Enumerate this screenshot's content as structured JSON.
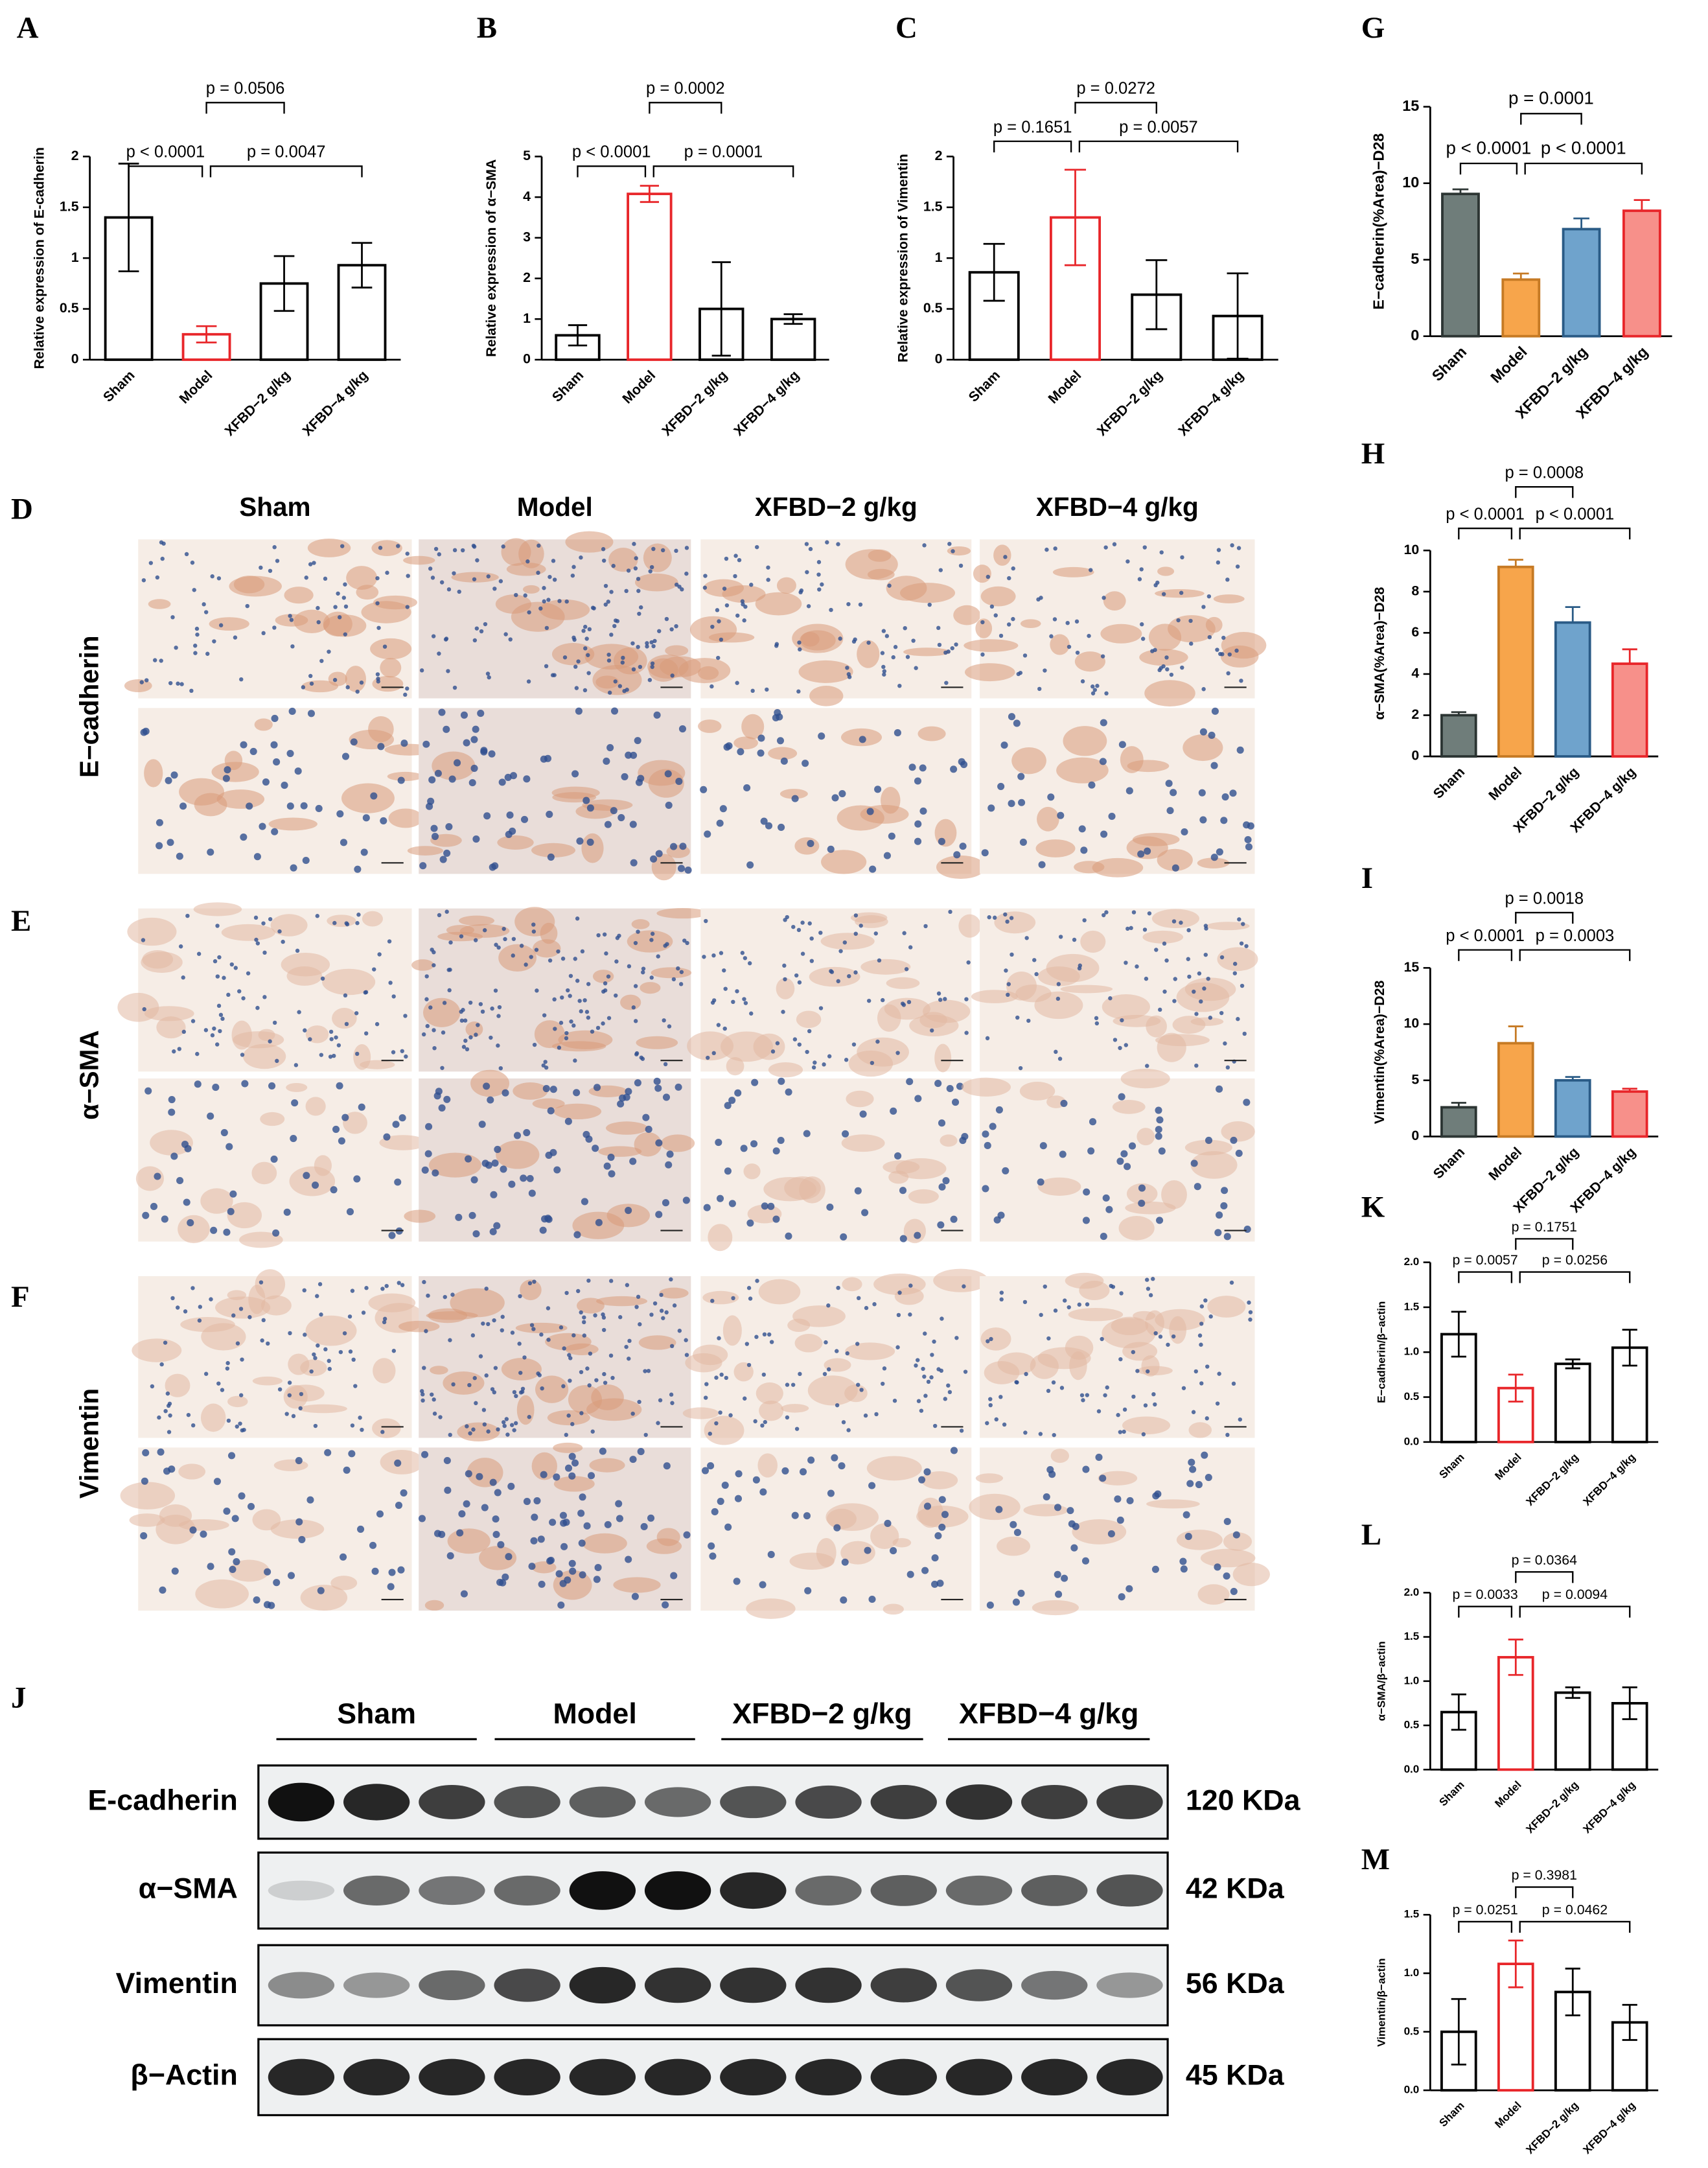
{
  "chart_data": [
    {
      "type": "bar",
      "panel": "A",
      "ylabel": "Relative expression of E-cadherin",
      "categories": [
        "Sham",
        "Model",
        "XFBD−2 g/kg",
        "XFBD−4 g/kg"
      ],
      "values": [
        1.4,
        0.25,
        0.75,
        0.93
      ],
      "errors": [
        0.53,
        0.08,
        0.27,
        0.22
      ],
      "fills": [
        "#ffffff",
        "#ffffff",
        "#ffffff",
        "#ffffff"
      ],
      "colors": [
        "#000000",
        "#e8262a",
        "#000000",
        "#000000"
      ],
      "error_bars": "both",
      "ylim": [
        0,
        2
      ],
      "yticks": [
        0,
        0.5,
        1,
        1.5,
        2
      ],
      "comparisons": [
        "p < 0.0001",
        "p = 0.0047",
        "p = 0.0506"
      ]
    },
    {
      "type": "bar",
      "panel": "B",
      "ylabel": "Relative expression of α−SMA",
      "categories": [
        "Sham",
        "Model",
        "XFBD−2 g/kg",
        "XFBD−4 g/kg"
      ],
      "values": [
        0.6,
        4.08,
        1.25,
        1.0
      ],
      "errors": [
        0.25,
        0.2,
        1.15,
        0.12
      ],
      "fills": [
        "#ffffff",
        "#ffffff",
        "#ffffff",
        "#ffffff"
      ],
      "colors": [
        "#000000",
        "#e8262a",
        "#000000",
        "#000000"
      ],
      "error_bars": "both",
      "ylim": [
        0,
        5
      ],
      "yticks": [
        0,
        1,
        2,
        3,
        4,
        5
      ],
      "comparisons": [
        "p < 0.0001",
        "p = 0.0001",
        "p = 0.0002"
      ]
    },
    {
      "type": "bar",
      "panel": "C",
      "ylabel": "Relative expression of Vimentin",
      "categories": [
        "Sham",
        "Model",
        "XFBD−2 g/kg",
        "XFBD−4 g/kg"
      ],
      "values": [
        0.86,
        1.4,
        0.64,
        0.43
      ],
      "errors": [
        0.28,
        0.47,
        0.34,
        0.42
      ],
      "fills": [
        "#ffffff",
        "#ffffff",
        "#ffffff",
        "#ffffff"
      ],
      "colors": [
        "#000000",
        "#e8262a",
        "#000000",
        "#000000"
      ],
      "error_bars": "both",
      "ylim": [
        0,
        2
      ],
      "yticks": [
        0,
        0.5,
        1,
        1.5,
        2
      ],
      "comparisons": [
        "p = 0.1651",
        "p = 0.0057",
        "p = 0.0272"
      ]
    },
    {
      "type": "bar",
      "panel": "G",
      "ylabel": "E−cadherin(%Area)−D28",
      "categories": [
        "Sham",
        "Model",
        "XFBD−2 g/kg",
        "XFBD−4 g/kg"
      ],
      "values": [
        9.3,
        3.7,
        7.0,
        8.2
      ],
      "errors": [
        0.3,
        0.4,
        0.7,
        0.7
      ],
      "fills": [
        "#6f7d7a",
        "#f7a54b",
        "#6fa3cc",
        "#f7908a"
      ],
      "colors": [
        "#2c3533",
        "#c67a24",
        "#2a5b86",
        "#e8262a"
      ],
      "error_bars": "up",
      "ylim": [
        0,
        15
      ],
      "yticks": [
        0,
        5,
        10,
        15
      ],
      "comparisons": [
        "p < 0.0001",
        "p < 0.0001",
        "p = 0.0001"
      ]
    },
    {
      "type": "bar",
      "panel": "H",
      "ylabel": "α−SMA(%Area)−D28",
      "categories": [
        "Sham",
        "Model",
        "XFBD−2 g/kg",
        "XFBD−4 g/kg"
      ],
      "values": [
        2.0,
        9.2,
        6.5,
        4.5
      ],
      "errors": [
        0.15,
        0.35,
        0.75,
        0.7
      ],
      "fills": [
        "#6f7d7a",
        "#f7a54b",
        "#6fa3cc",
        "#f7908a"
      ],
      "colors": [
        "#2c3533",
        "#c67a24",
        "#2a5b86",
        "#e8262a"
      ],
      "error_bars": "up",
      "ylim": [
        0,
        10
      ],
      "yticks": [
        0,
        2,
        4,
        6,
        8,
        10
      ],
      "comparisons": [
        "p < 0.0001",
        "p < 0.0001",
        "p = 0.0008"
      ]
    },
    {
      "type": "bar",
      "panel": "I",
      "ylabel": "Vimentin(%Area)−D28",
      "categories": [
        "Sham",
        "Model",
        "XFBD−2 g/kg",
        "XFBD−4 g/kg"
      ],
      "values": [
        2.6,
        8.3,
        5.0,
        4.0
      ],
      "errors": [
        0.4,
        1.5,
        0.3,
        0.25
      ],
      "fills": [
        "#6f7d7a",
        "#f7a54b",
        "#6fa3cc",
        "#f7908a"
      ],
      "colors": [
        "#2c3533",
        "#c67a24",
        "#2a5b86",
        "#e8262a"
      ],
      "error_bars": "up",
      "ylim": [
        0,
        15
      ],
      "yticks": [
        0,
        5,
        10,
        15
      ],
      "comparisons": [
        "p < 0.0001",
        "p = 0.0003",
        "p = 0.0018"
      ]
    },
    {
      "type": "bar",
      "panel": "K",
      "ylabel": "E−cadherin/β−actin",
      "categories": [
        "Sham",
        "Model",
        "XFBD−2 g/kg",
        "XFBD−4 g/kg"
      ],
      "values": [
        1.2,
        0.6,
        0.87,
        1.05
      ],
      "errors": [
        0.25,
        0.15,
        0.05,
        0.2
      ],
      "fills": [
        "#ffffff",
        "#ffffff",
        "#ffffff",
        "#ffffff"
      ],
      "colors": [
        "#000000",
        "#e8262a",
        "#000000",
        "#000000"
      ],
      "error_bars": "both",
      "ylim": [
        0,
        2
      ],
      "yticks": [
        {
          "value": 0,
          "label": "0.0"
        },
        0.5,
        {
          "value": 1,
          "label": "1.0"
        },
        1.5,
        {
          "value": 2,
          "label": "2.0"
        }
      ],
      "comparisons": [
        "p = 0.0057",
        "p = 0.0256",
        "p = 0.1751"
      ]
    },
    {
      "type": "bar",
      "panel": "L",
      "ylabel": "α−SMA/β−actin",
      "categories": [
        "Sham",
        "Model",
        "XFBD−2 g/kg",
        "XFBD−4 g/kg"
      ],
      "values": [
        0.65,
        1.27,
        0.87,
        0.75
      ],
      "errors": [
        0.2,
        0.2,
        0.06,
        0.18
      ],
      "fills": [
        "#ffffff",
        "#ffffff",
        "#ffffff",
        "#ffffff"
      ],
      "colors": [
        "#000000",
        "#e8262a",
        "#000000",
        "#000000"
      ],
      "error_bars": "both",
      "ylim": [
        0,
        2
      ],
      "yticks": [
        {
          "value": 0,
          "label": "0.0"
        },
        0.5,
        {
          "value": 1,
          "label": "1.0"
        },
        1.5,
        {
          "value": 2,
          "label": "2.0"
        }
      ],
      "comparisons": [
        "p = 0.0033",
        "p = 0.0094",
        "p = 0.0364"
      ]
    },
    {
      "type": "bar",
      "panel": "M",
      "ylabel": "Vimentin/β−actin",
      "categories": [
        "Sham",
        "Model",
        "XFBD−2 g/kg",
        "XFBD−4 g/kg"
      ],
      "values": [
        0.5,
        1.08,
        0.84,
        0.58
      ],
      "errors": [
        0.28,
        0.2,
        0.2,
        0.15
      ],
      "fills": [
        "#ffffff",
        "#ffffff",
        "#ffffff",
        "#ffffff"
      ],
      "colors": [
        "#000000",
        "#e8262a",
        "#000000",
        "#000000"
      ],
      "error_bars": "both",
      "ylim": [
        0,
        1.5
      ],
      "yticks": [
        {
          "value": 0,
          "label": "0.0"
        },
        0.5,
        {
          "value": 1,
          "label": "1.0"
        },
        1.5
      ],
      "comparisons": [
        "p = 0.0251",
        "p = 0.0462",
        "p = 0.3981"
      ]
    }
  ],
  "histology": {
    "columns": [
      "Sham",
      "Model",
      "XFBD−2 g/kg",
      "XFBD−4 g/kg"
    ],
    "rows": [
      {
        "panel": "D",
        "label": "E−cadherin"
      },
      {
        "panel": "E",
        "label": "α−SMA"
      },
      {
        "panel": "F",
        "label": "Vimentin"
      }
    ]
  },
  "western_blot": {
    "panel": "J",
    "groups": [
      "Sham",
      "Model",
      "XFBD−2 g/kg",
      "XFBD−4 g/kg"
    ],
    "proteins": [
      "E-cadherin",
      "α−SMA",
      "Vimentin",
      "β−Actin"
    ],
    "sizes": [
      "120 KDa",
      "42 KDa",
      "56 KDa",
      "45 KDa"
    ]
  }
}
